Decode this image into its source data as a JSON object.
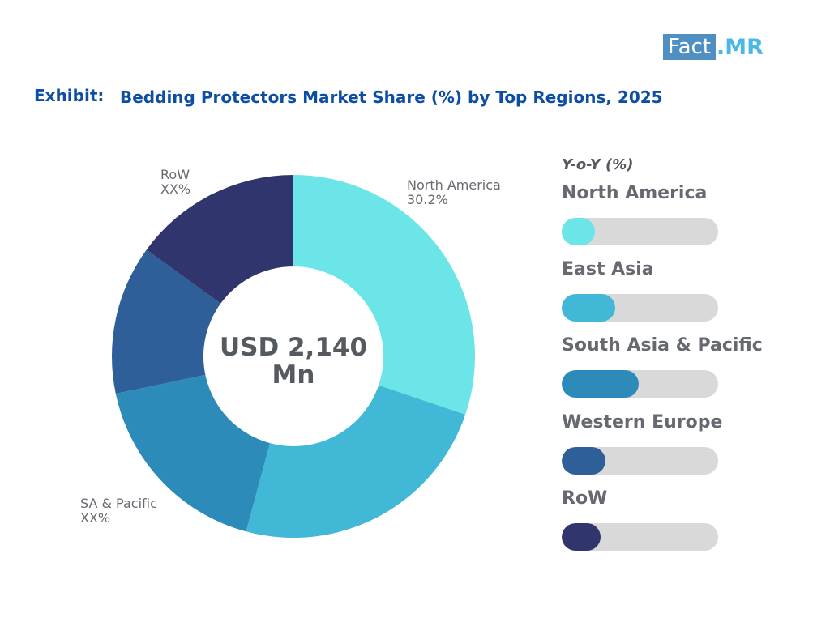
{
  "logo": {
    "box_text": "Fact",
    "rest_text": ".MR"
  },
  "exhibit_label": "Exhibit:",
  "chart_data": {
    "type": "pie",
    "title": "Bedding Protectors Market Share (%) by Top Regions, 2025",
    "center_text": [
      "USD 2,140",
      "Mn"
    ],
    "slices": [
      {
        "name": "North America",
        "value": 30.2,
        "color": "#6ce5e8"
      },
      {
        "name": "East Asia",
        "value": 24.0,
        "color": "#41b8d5"
      },
      {
        "name": "South Asia & Pacific",
        "value": 17.5,
        "color": "#2d8bba"
      },
      {
        "name": "Western Europe",
        "value": 13.3,
        "color": "#2f5f98"
      },
      {
        "name": "RoW",
        "value": 15.0,
        "color": "#31356e"
      }
    ],
    "slice_labels": [
      {
        "key": "north_america",
        "lines": [
          "North America",
          "30.2%"
        ]
      },
      {
        "key": "sa_pacific",
        "lines": [
          "SA & Pacific",
          "XX%"
        ]
      },
      {
        "key": "row",
        "lines": [
          "RoW",
          "XX%"
        ]
      }
    ],
    "yoy": {
      "title": "Y-o-Y (%)",
      "items": [
        {
          "name": "North America",
          "fill": 0.21,
          "color": "#6ce5e8"
        },
        {
          "name": "East Asia",
          "fill": 0.34,
          "color": "#41b8d5"
        },
        {
          "name": "South Asia & Pacific",
          "fill": 0.49,
          "color": "#2d8bba"
        },
        {
          "name": "Western Europe",
          "fill": 0.28,
          "color": "#2f5f98"
        },
        {
          "name": "RoW",
          "fill": 0.25,
          "color": "#31356e"
        }
      ]
    }
  }
}
